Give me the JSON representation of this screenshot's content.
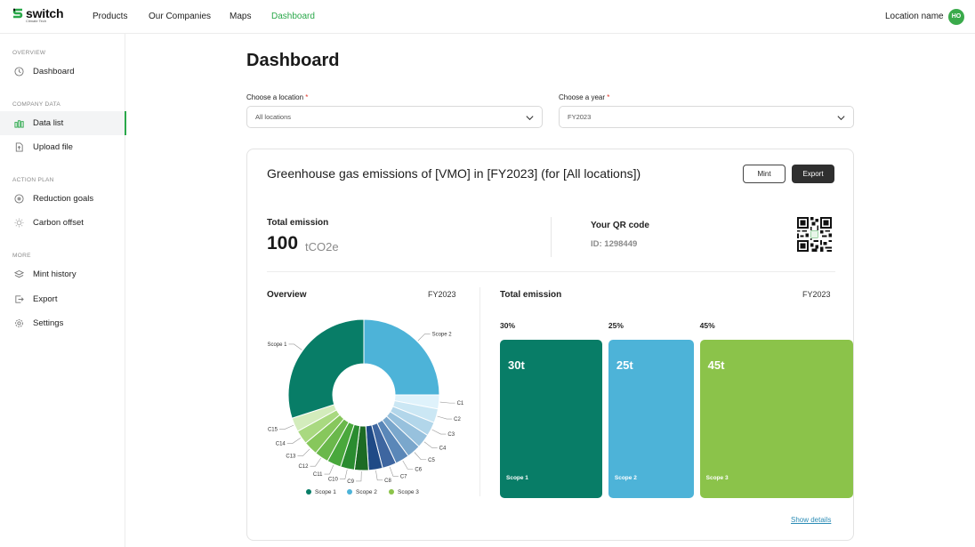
{
  "brand": {
    "name": "switch",
    "tagline": "Climate Tech"
  },
  "nav": {
    "items": [
      {
        "label": "Products"
      },
      {
        "label": "Our Companies"
      },
      {
        "label": "Maps"
      },
      {
        "label": "Dashboard",
        "active": true
      }
    ],
    "location_name": "Location name",
    "avatar_initials": "HO"
  },
  "sidebar": {
    "sections": [
      {
        "title": "OVERVIEW",
        "items": [
          {
            "label": "Dashboard",
            "icon": "clock-icon"
          }
        ]
      },
      {
        "title": "COMPANY DATA",
        "items": [
          {
            "label": "Data list",
            "icon": "bar-chart-icon",
            "active": true
          },
          {
            "label": "Upload file",
            "icon": "file-upload-icon"
          }
        ]
      },
      {
        "title": "ACTION PLAN",
        "items": [
          {
            "label": "Reduction goals",
            "icon": "target-icon"
          },
          {
            "label": "Carbon offset",
            "icon": "sun-icon"
          }
        ]
      },
      {
        "title": "MORE",
        "items": [
          {
            "label": "Mint history",
            "icon": "layers-icon"
          },
          {
            "label": "Export",
            "icon": "export-icon"
          },
          {
            "label": "Settings",
            "icon": "gear-icon"
          }
        ]
      }
    ]
  },
  "page": {
    "title": "Dashboard"
  },
  "filters": {
    "location": {
      "label": "Choose a location",
      "required": "*",
      "value": "All locations"
    },
    "year": {
      "label": "Choose a year",
      "required": "*",
      "value": "FY2023"
    }
  },
  "card": {
    "title": "Greenhouse gas emissions of [VMO] in [FY2023] (for [All locations])",
    "mint_label": "Mint",
    "export_label": "Export",
    "total_label": "Total emission",
    "total_value": "100",
    "total_unit": "tCO2e",
    "qr_label": "Your QR code",
    "qr_id": "ID: 1298449",
    "overview_title": "Overview",
    "overview_year": "FY2023",
    "bars_title": "Total emission",
    "bars_year": "FY2023",
    "show_details": "Show details"
  },
  "colors": {
    "accent": "#2aa84a",
    "scope1": "#087d67",
    "scope2": "#4db3d8",
    "scope3": "#8bc34a"
  },
  "chart_data": [
    {
      "type": "pie",
      "labels": [
        "Scope 2",
        "C1",
        "C2",
        "C3",
        "C4",
        "C5",
        "C6",
        "C7",
        "C8",
        "C9",
        "C10",
        "C11",
        "C12",
        "C13",
        "C14",
        "C15",
        "Scope 1"
      ],
      "values": [
        25,
        3,
        3,
        3,
        3,
        3,
        3,
        3,
        3,
        3,
        3,
        3,
        3,
        3,
        3,
        3,
        30
      ],
      "colors": [
        "#4db3d8",
        "#dff2fb",
        "#cbe7f4",
        "#b2d6ea",
        "#97c1dd",
        "#7aa7cc",
        "#5a87b8",
        "#3e66a0",
        "#1f4a86",
        "#1d6b24",
        "#2a8c30",
        "#49a83c",
        "#6ab84b",
        "#87c75c",
        "#a9d980",
        "#d3ecbc",
        "#087d67"
      ],
      "legend": [
        {
          "name": "Scope 1",
          "color": "#087d67"
        },
        {
          "name": "Scope 2",
          "color": "#4db3d8"
        },
        {
          "name": "Scope 3",
          "color": "#8bc34a"
        }
      ]
    },
    {
      "type": "bar",
      "categories": [
        "Scope 1",
        "Scope 2",
        "Scope 3"
      ],
      "values": [
        30,
        25,
        45
      ],
      "value_labels": [
        "30t",
        "25t",
        "45t"
      ],
      "percent_labels": [
        "30%",
        "25%",
        "45%"
      ],
      "colors": [
        "#087d67",
        "#4db3d8",
        "#8bc34a"
      ]
    }
  ]
}
